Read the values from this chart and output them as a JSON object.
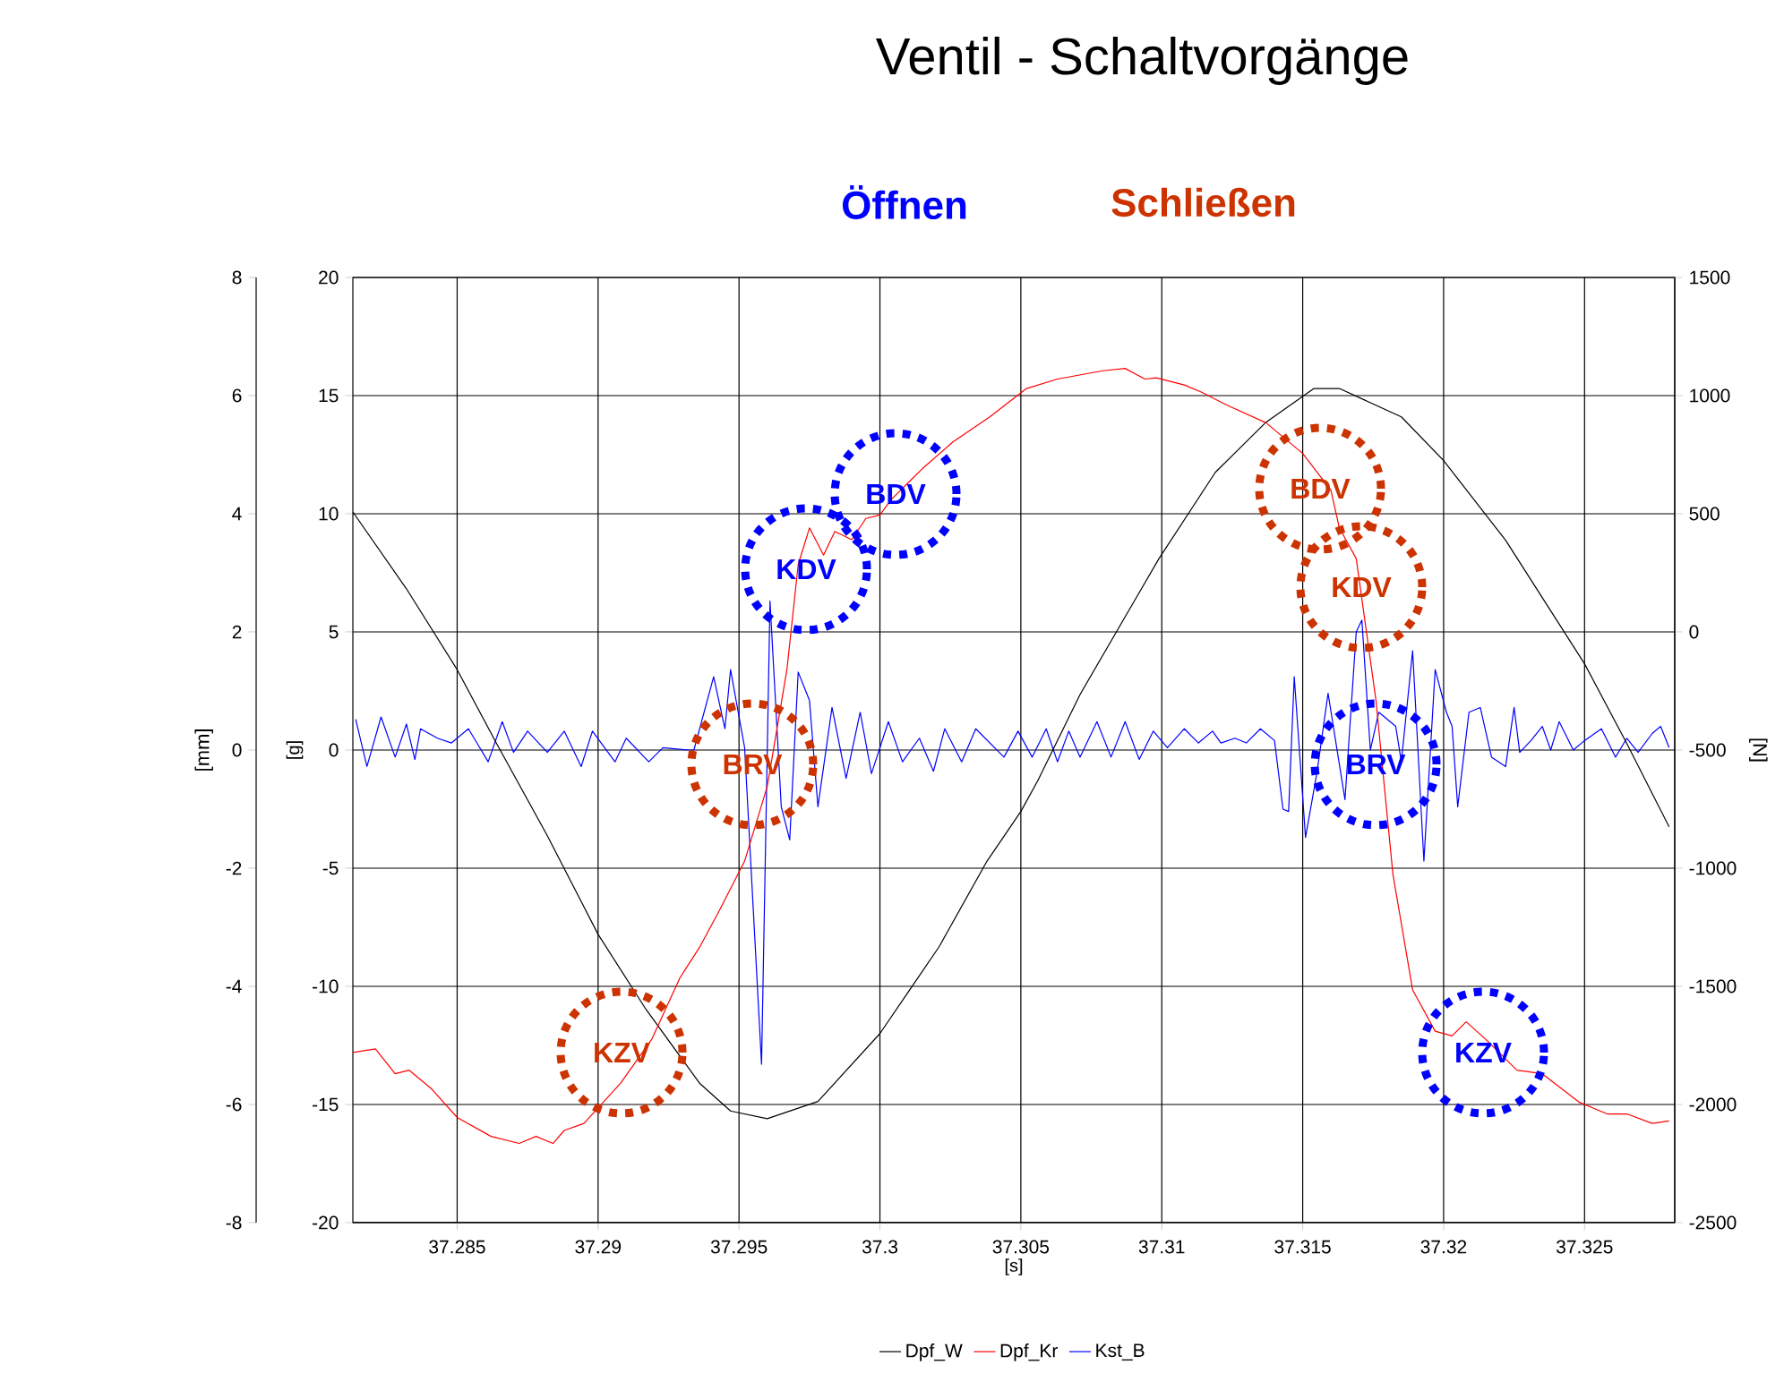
{
  "chart_data": {
    "type": "line",
    "title": "Ventil - Schaltvorgänge",
    "xlabel": "[s]",
    "ylabel": "[mm]",
    "y2label": "[N]",
    "y3label": "[g]",
    "xlim": [
      37.2813,
      37.3282
    ],
    "xticks": [
      37.285,
      37.29,
      37.295,
      37.3,
      37.305,
      37.31,
      37.315,
      37.32,
      37.325
    ],
    "ylim": [
      -8,
      8
    ],
    "yticks": [
      -8,
      -6,
      -4,
      -2,
      0,
      2,
      4,
      6,
      8
    ],
    "y2lim": [
      -2500,
      1500
    ],
    "y2ticks": [
      -2500,
      -2000,
      -1500,
      -1000,
      -500,
      0,
      500,
      1000,
      1500
    ],
    "y3lim": [
      -20,
      20
    ],
    "y3ticks": [
      -20,
      -15,
      -10,
      -5,
      0,
      5,
      10,
      15,
      20
    ],
    "grid": true,
    "legend": "bottom",
    "series": [
      {
        "name": "Dpf_W",
        "color": "#000000",
        "axis": "y",
        "x": [
          37.2813,
          37.2832,
          37.285,
          37.2864,
          37.2882,
          37.29,
          37.2917,
          37.2936,
          37.2947,
          37.296,
          37.2978,
          37.3,
          37.3021,
          37.3038,
          37.305,
          37.3056,
          37.3071,
          37.3099,
          37.3119,
          37.3137,
          37.3154,
          37.3163,
          37.3185,
          37.32,
          37.3222,
          37.325,
          37.3265,
          37.328
        ],
        "values": [
          4.03,
          2.73,
          1.36,
          0.11,
          -1.45,
          -3.12,
          -4.39,
          -5.64,
          -6.11,
          -6.24,
          -5.95,
          -4.8,
          -3.33,
          -1.88,
          -1.04,
          -0.52,
          0.94,
          3.24,
          4.7,
          5.55,
          6.12,
          6.12,
          5.64,
          4.9,
          3.55,
          1.46,
          0.11,
          -1.3
        ]
      },
      {
        "name": "Dpf_Kr",
        "color": "#ff0000",
        "axis": "y2",
        "x": [
          37.2813,
          37.2821,
          37.2828,
          37.2833,
          37.2841,
          37.285,
          37.2862,
          37.2872,
          37.2878,
          37.2884,
          37.2888,
          37.2895,
          37.2908,
          37.2919,
          37.2929,
          37.2936,
          37.2943,
          37.2952,
          37.296,
          37.2967,
          37.2971,
          37.2975,
          37.298,
          37.2984,
          37.299,
          37.2995,
          37.3,
          37.3004,
          37.3015,
          37.3026,
          37.3039,
          37.3052,
          37.3063,
          37.3079,
          37.3087,
          37.3094,
          37.3098,
          37.3108,
          37.3114,
          37.3123,
          37.3137,
          37.315,
          37.316,
          37.3163,
          37.3169,
          37.3176,
          37.3182,
          37.3189,
          37.3197,
          37.3203,
          37.3208,
          37.3215,
          37.3226,
          37.3235,
          37.3248,
          37.3258,
          37.3265,
          37.3274,
          37.328
        ],
        "values": [
          -1780,
          -1765,
          -1870,
          -1855,
          -1935,
          -2055,
          -2135,
          -2165,
          -2135,
          -2165,
          -2110,
          -2080,
          -1910,
          -1725,
          -1465,
          -1335,
          -1180,
          -970,
          -655,
          -160,
          285,
          440,
          325,
          425,
          390,
          480,
          495,
          560,
          690,
          805,
          910,
          1030,
          1070,
          1105,
          1115,
          1070,
          1075,
          1045,
          1015,
          960,
          885,
          755,
          600,
          440,
          310,
          -290,
          -1025,
          -1515,
          -1690,
          -1710,
          -1650,
          -1725,
          -1855,
          -1870,
          -1990,
          -2040,
          -2040,
          -2080,
          -2070
        ]
      },
      {
        "name": "Kst_B",
        "color": "#0000ff",
        "axis": "y3",
        "x": [
          37.2814,
          37.2818,
          37.2823,
          37.2828,
          37.2832,
          37.2835,
          37.2837,
          37.2843,
          37.2848,
          37.2854,
          37.2857,
          37.2861,
          37.2866,
          37.287,
          37.2875,
          37.2882,
          37.2888,
          37.2894,
          37.2898,
          37.2906,
          37.291,
          37.2918,
          37.2923,
          37.2932,
          37.2934,
          37.2941,
          37.2945,
          37.2947,
          37.2952,
          37.2958,
          37.2961,
          37.2965,
          37.2968,
          37.2971,
          37.2975,
          37.2978,
          37.2983,
          37.2988,
          37.2993,
          37.2997,
          37.3003,
          37.3008,
          37.3014,
          37.3019,
          37.3023,
          37.3029,
          37.3034,
          37.3039,
          37.3044,
          37.3049,
          37.3054,
          37.3059,
          37.3063,
          37.3067,
          37.3071,
          37.3077,
          37.3082,
          37.3087,
          37.3092,
          37.3097,
          37.3102,
          37.3108,
          37.3113,
          37.3118,
          37.3121,
          37.3126,
          37.313,
          37.3135,
          37.314,
          37.3143,
          37.3145,
          37.3147,
          37.3151,
          37.3155,
          37.3159,
          37.3165,
          37.3169,
          37.3171,
          37.3174,
          37.3177,
          37.3183,
          37.3185,
          37.3189,
          37.3193,
          37.3197,
          37.3201,
          37.3203,
          37.3205,
          37.3209,
          37.3213,
          37.3217,
          37.3222,
          37.3225,
          37.3227,
          37.3231,
          37.3235,
          37.3238,
          37.3241,
          37.3246,
          37.325,
          37.3256,
          37.3261,
          37.3265,
          37.3269,
          37.3274,
          37.3277,
          37.328
        ],
        "values": [
          1.3,
          -0.7,
          1.4,
          -0.3,
          1.1,
          -0.4,
          0.9,
          0.5,
          0.3,
          0.9,
          0.3,
          -0.5,
          1.2,
          -0.1,
          0.8,
          -0.1,
          0.8,
          -0.7,
          0.8,
          -0.5,
          0.5,
          -0.5,
          0.1,
          0,
          0,
          3.1,
          0.9,
          3.4,
          0.1,
          -13.3,
          6.3,
          -2.4,
          -3.8,
          3.3,
          2.1,
          -2.4,
          1.8,
          -1.2,
          1.6,
          -1.0,
          1.2,
          -0.5,
          0.5,
          -0.9,
          0.9,
          -0.5,
          0.9,
          0.3,
          -0.3,
          0.8,
          -0.3,
          0.9,
          -0.5,
          0.8,
          -0.3,
          1.2,
          -0.3,
          1.2,
          -0.4,
          0.8,
          0.1,
          0.9,
          0.3,
          0.8,
          0.3,
          0.5,
          0.3,
          0.9,
          0.4,
          -2.5,
          -2.6,
          3.1,
          -3.7,
          -1.0,
          2.4,
          -2.1,
          5.0,
          5.5,
          0,
          1.6,
          1.0,
          -0.5,
          4.2,
          -4.7,
          3.4,
          1.6,
          1.0,
          -2.4,
          1.6,
          1.8,
          -0.3,
          -0.7,
          1.8,
          -0.1,
          0.4,
          1.0,
          0,
          1.2,
          0,
          0.4,
          0.9,
          -0.3,
          0.5,
          -0.1,
          0.7,
          1.0,
          0.1
        ]
      }
    ],
    "annotations": [
      "**Öffnen**",
      "**Schließen**",
      "KZV",
      "BRV",
      "KDV",
      "BDV",
      "BDV",
      "KDV",
      "BRV",
      "KZV"
    ]
  }
}
